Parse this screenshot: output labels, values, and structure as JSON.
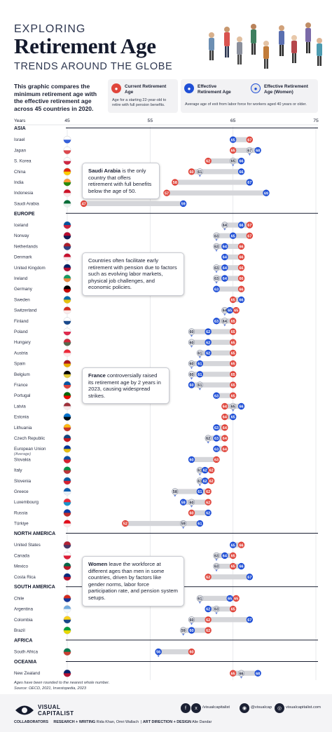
{
  "header": {
    "kicker": "EXPLORING",
    "title": "Retirement Age",
    "subtitle": "TRENDS AROUND THE GLOBE"
  },
  "intro_text": "This graphic compares the minimum retirement age with the effective retirement age across 45 countries in 2020.",
  "legend": {
    "current_title": "Current Retirement Age",
    "current_desc": "Age for a starting 22-year-old to retire with full pension benefits.",
    "effective_title": "Effective Retirement Age",
    "women_title": "Effective Retirement Age (Women)",
    "effective_desc": "Average age of exit from labor force for workers aged 40 years or older."
  },
  "colors": {
    "current": "#e0463c",
    "effective": "#1f4fd6",
    "women": "#e6e7ea",
    "bar": "#d5d6da",
    "region_line": "#1b2033",
    "navy": "#141a2d"
  },
  "chart_data": {
    "type": "range-dot",
    "x_label": "Years",
    "x_ticks": [
      45,
      55,
      65,
      75
    ],
    "xlim": [
      45,
      75
    ],
    "regions": [
      {
        "name": "ASIA",
        "countries": [
          {
            "name": "Israel",
            "flag": "israel-flag",
            "current": 67,
            "effective": 65,
            "women": null
          },
          {
            "name": "Japan",
            "flag": "japan-flag",
            "current": 65,
            "effective": 68,
            "women": 67
          },
          {
            "name": "S. Korea",
            "flag": "south-korea-flag",
            "current": 62,
            "effective": 66,
            "women": 65
          },
          {
            "name": "China",
            "flag": "china-flag",
            "current": 60,
            "effective": 66,
            "women": 61
          },
          {
            "name": "India",
            "flag": "india-flag",
            "current": 58,
            "effective": 67,
            "women": null
          },
          {
            "name": "Indonesia",
            "flag": "indonesia-flag",
            "current": 57,
            "effective": 69,
            "women": null
          },
          {
            "name": "Saudi Arabia",
            "flag": "saudi-arabia-flag",
            "current": 47,
            "effective": 59,
            "women": null
          }
        ]
      },
      {
        "name": "EUROPE",
        "countries": [
          {
            "name": "Iceland",
            "flag": "iceland-flag",
            "current": 67,
            "effective": 66,
            "women": 64
          },
          {
            "name": "Norway",
            "flag": "norway-flag",
            "current": 67,
            "effective": 65,
            "women": 63
          },
          {
            "name": "Netherlands",
            "flag": "netherlands-flag",
            "current": 66,
            "effective": 64,
            "women": 63
          },
          {
            "name": "Denmark",
            "flag": "denmark-flag",
            "current": 66,
            "effective": 64,
            "women": null
          },
          {
            "name": "United Kingdom",
            "flag": "uk-flag",
            "current": 66,
            "effective": 64,
            "women": 63
          },
          {
            "name": "Ireland",
            "flag": "ireland-flag",
            "current": 66,
            "effective": 64,
            "women": 63
          },
          {
            "name": "Germany",
            "flag": "germany-flag",
            "current": 66,
            "effective": 63,
            "women": null
          },
          {
            "name": "Sweden",
            "flag": "sweden-flag",
            "current": 65,
            "effective": 66,
            "women": null
          },
          {
            "name": "Switzerland",
            "flag": "switzerland-flag",
            "current": 65,
            "effective": 65,
            "women": 64
          },
          {
            "name": "Finland",
            "flag": "finland-flag",
            "current": 65,
            "effective": 63,
            "women": 64
          },
          {
            "name": "Poland",
            "flag": "poland-flag",
            "current": 65,
            "effective": 62,
            "women": 60
          },
          {
            "name": "Hungary",
            "flag": "hungary-flag",
            "current": 65,
            "effective": 62,
            "women": 60
          },
          {
            "name": "Austria",
            "flag": "austria-flag",
            "current": 65,
            "effective": 62,
            "women": 61
          },
          {
            "name": "Spain",
            "flag": "spain-flag",
            "current": 65,
            "effective": 61,
            "women": 60
          },
          {
            "name": "Belgium",
            "flag": "belgium-flag",
            "current": 65,
            "effective": 61,
            "women": 60
          },
          {
            "name": "France",
            "flag": "france-flag",
            "current": 65,
            "effective": 60,
            "women": 61
          },
          {
            "name": "Portugal",
            "flag": "portugal-flag",
            "current": 65,
            "effective": 63,
            "women": null
          },
          {
            "name": "Latvia",
            "flag": "latvia-flag",
            "current": 64,
            "effective": 66,
            "women": 65
          },
          {
            "name": "Estonia",
            "flag": "estonia-flag",
            "current": 64,
            "effective": 65,
            "women": null
          },
          {
            "name": "Lithuania",
            "flag": "lithuania-flag",
            "current": 64,
            "effective": 63,
            "women": null
          },
          {
            "name": "Czech Republic",
            "flag": "czech-flag",
            "current": 64,
            "effective": 63,
            "women": 62
          },
          {
            "name": "European Union",
            "note": "(Average)",
            "flag": "eu-flag",
            "current": 64,
            "effective": 63,
            "women": null
          },
          {
            "name": "Slovakia",
            "flag": "slovakia-flag",
            "current": 63,
            "effective": 60,
            "women": null
          },
          {
            "name": "Italy",
            "flag": "italy-flag",
            "current": 62,
            "effective": 62,
            "women": 61
          },
          {
            "name": "Slovenia",
            "flag": "slovenia-flag",
            "current": 62,
            "effective": 62,
            "women": 61
          },
          {
            "name": "Greece",
            "flag": "greece-flag",
            "current": 62,
            "effective": 61,
            "women": 58
          },
          {
            "name": "Luxembourg",
            "flag": "luxembourg-flag",
            "current": 62,
            "effective": 59,
            "women": 60
          },
          {
            "name": "Russia",
            "flag": "russia-flag",
            "current": 60,
            "effective": 62,
            "women": null
          },
          {
            "name": "Türkiye",
            "flag": "turkiye-flag",
            "current": 52,
            "effective": 61,
            "women": 59
          }
        ]
      },
      {
        "name": "NORTH AMERICA",
        "countries": [
          {
            "name": "United States",
            "flag": "usa-flag",
            "current": 66,
            "effective": 65,
            "women": null
          },
          {
            "name": "Canada",
            "flag": "canada-flag",
            "current": 65,
            "effective": 64,
            "women": 63
          },
          {
            "name": "Mexico",
            "flag": "mexico-flag",
            "current": 65,
            "effective": 66,
            "women": 63
          },
          {
            "name": "Costa Rica",
            "flag": "costa-rica-flag",
            "current": 62,
            "effective": 67,
            "women": null
          }
        ]
      },
      {
        "name": "SOUTH AMERICA",
        "countries": [
          {
            "name": "Chile",
            "flag": "chile-flag",
            "current": 65,
            "effective": 65,
            "women": 61
          },
          {
            "name": "Argentina",
            "flag": "argentina-flag",
            "current": 65,
            "effective": 62,
            "women": 63
          },
          {
            "name": "Colombia",
            "flag": "colombia-flag",
            "current": 62,
            "effective": 67,
            "women": 60
          },
          {
            "name": "Brazil",
            "flag": "brazil-flag",
            "current": 62,
            "effective": 60,
            "women": 59
          }
        ]
      },
      {
        "name": "AFRICA",
        "countries": [
          {
            "name": "South Africa",
            "flag": "south-africa-flag",
            "current": 60,
            "effective": 56,
            "women": 56
          }
        ]
      },
      {
        "name": "OCEANIA",
        "countries": [
          {
            "name": "New Zealand",
            "flag": "new-zealand-flag",
            "current": 65,
            "effective": 68,
            "women": 66
          }
        ]
      }
    ],
    "annotations": [
      {
        "bold": "Saudi Arabia",
        "text": " is the only country that offers retirement with full benefits below the age of 50."
      },
      {
        "bold": "",
        "text": "Countries often facilitate early retirement with pension due to factors such as evolving labor markets, physical job challenges, and economic policies."
      },
      {
        "bold": "France",
        "text": " controversially raised its retirement age by 2 years in 2023, causing widespread strikes."
      },
      {
        "bold": "Women",
        "text": " leave the workforce at different ages than men in some countries, driven by factors like gender norms, labor force participation rate, and pension system setups."
      }
    ]
  },
  "source": {
    "note": "Ages have been rounded to the nearest whole number.",
    "text": "Source: OECD, 2021, Investopedia, 2023"
  },
  "footer": {
    "logo_line1": "VISUAL",
    "logo_line2": "CAPITALIST",
    "social1": "/visualcapitalist",
    "social2": "@visualcap",
    "social3": "visualcapitalist.com",
    "collab_label": "COLLABORATORS",
    "research_label": "RESEARCH + WRITING",
    "research_names": "Rida Khan, Omri Wallach",
    "art_label": "ART DIRECTION + DESIGN",
    "art_names": "Alie Dandar"
  }
}
